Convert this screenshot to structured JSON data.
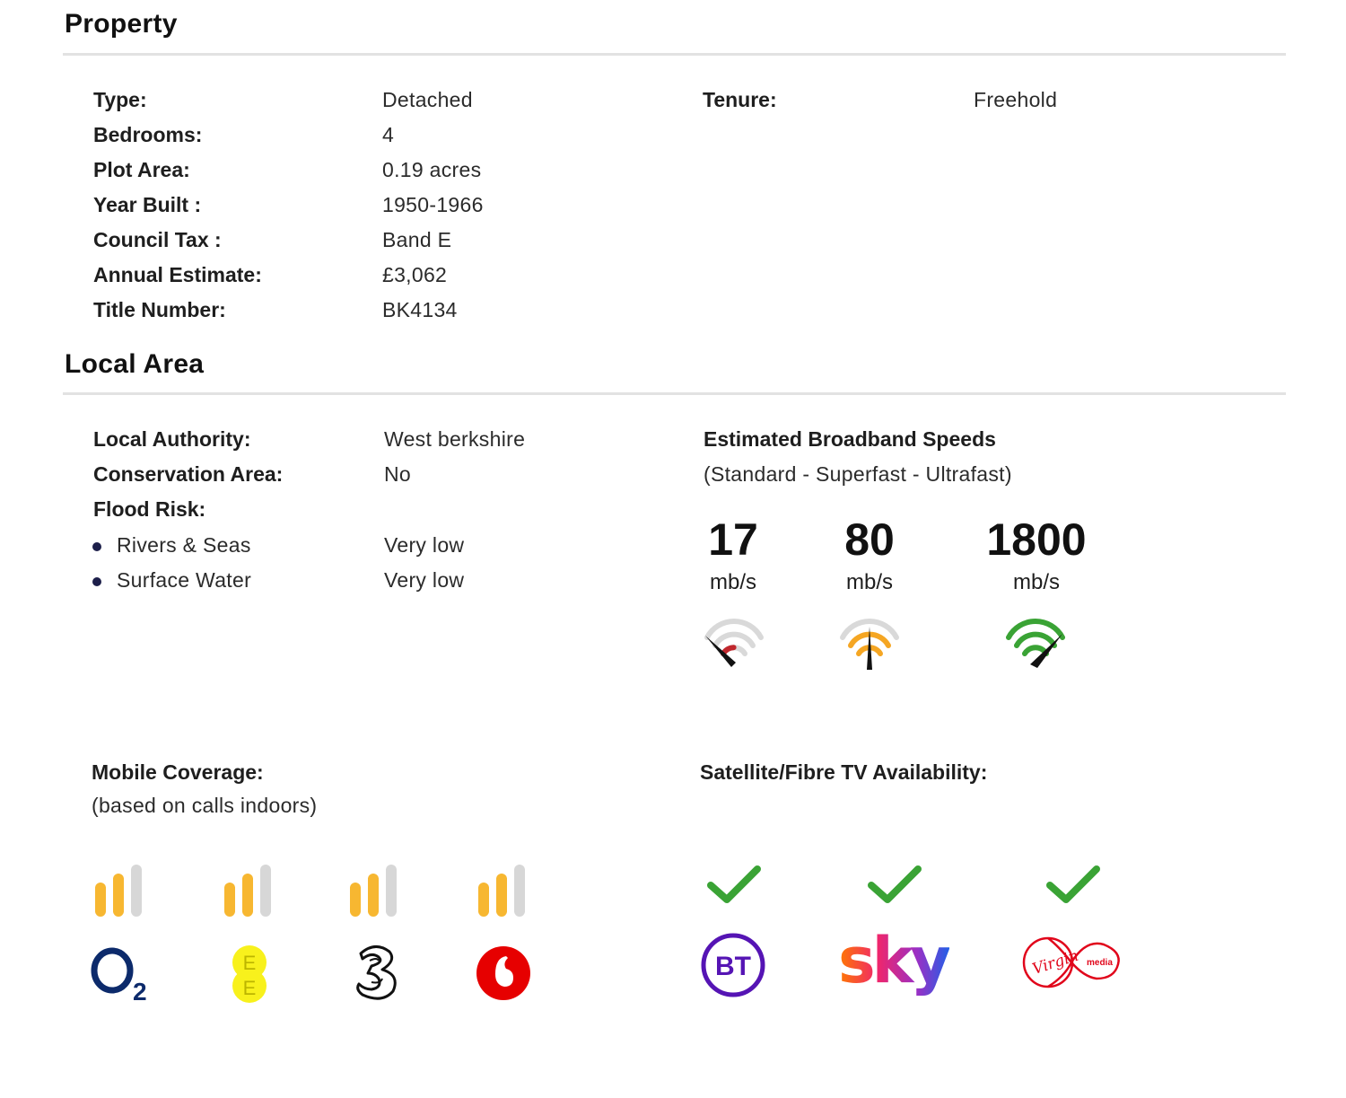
{
  "property": {
    "title": "Property",
    "rows": [
      {
        "label": "Type:",
        "value": "Detached"
      },
      {
        "label": "Bedrooms:",
        "value": "4"
      },
      {
        "label": "Plot Area:",
        "value": "0.19 acres"
      },
      {
        "label": "Year Built :",
        "value": "1950-1966"
      },
      {
        "label": "Council Tax :",
        "value": "Band E"
      },
      {
        "label": "Annual Estimate:",
        "value": "£3,062"
      },
      {
        "label": "Title Number:",
        "value": "BK4134"
      }
    ],
    "tenure": {
      "label": "Tenure:",
      "value": "Freehold"
    }
  },
  "local_area": {
    "title": "Local Area",
    "local_authority": {
      "label": "Local Authority:",
      "value": "West berkshire"
    },
    "conservation_area": {
      "label": "Conservation Area:",
      "value": "No"
    },
    "flood_risk": {
      "label": "Flood Risk:",
      "items": [
        {
          "label": "Rivers & Seas",
          "value": "Very low"
        },
        {
          "label": "Surface Water",
          "value": "Very low"
        }
      ]
    },
    "broadband": {
      "title": "Estimated Broadband Speeds",
      "subtitle": "(Standard - Superfast - Ultrafast)",
      "speeds": [
        {
          "value": "17",
          "unit": "mb/s",
          "gauge": "standard",
          "color": "#c0272d"
        },
        {
          "value": "80",
          "unit": "mb/s",
          "gauge": "superfast",
          "color": "#f5a623"
        },
        {
          "value": "1800",
          "unit": "mb/s",
          "gauge": "ultrafast",
          "color": "#3aa335"
        }
      ]
    },
    "mobile": {
      "title": "Mobile Coverage:",
      "subtitle": "(based on calls indoors)",
      "networks": [
        {
          "icon": "o2-logo",
          "signal_bars_filled": 2,
          "signal_bars_total": 3
        },
        {
          "icon": "ee-logo",
          "signal_bars_filled": 2,
          "signal_bars_total": 3
        },
        {
          "icon": "three-logo",
          "signal_bars_filled": 2,
          "signal_bars_total": 3
        },
        {
          "icon": "vodafone-logo",
          "signal_bars_filled": 2,
          "signal_bars_total": 3
        }
      ],
      "bar_colors": {
        "filled": "#f7b731",
        "empty": "#d7d7d7"
      }
    },
    "tv": {
      "title": "Satellite/Fibre TV Availability:",
      "providers": [
        {
          "icon": "bt-logo",
          "available": true
        },
        {
          "icon": "sky-logo",
          "available": true
        },
        {
          "icon": "virgin-media-logo",
          "available": true
        }
      ],
      "check_color": "#3aa335"
    }
  }
}
